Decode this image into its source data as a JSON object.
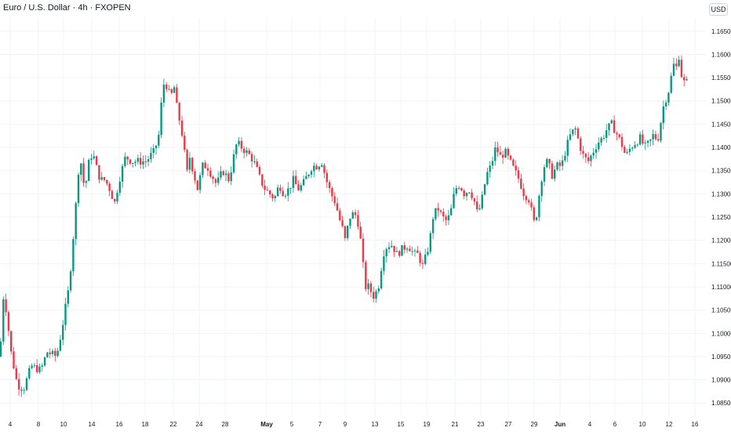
{
  "header": {
    "title": "Euro / U.S. Dollar · 4h · FXOPEN",
    "currency": "USD"
  },
  "colors": {
    "up": "#089981",
    "down": "#f23645",
    "grid": "#f0f3fa",
    "axis_text": "#131722",
    "background": "#ffffff"
  },
  "chart_data": {
    "type": "candlestick",
    "timeframe": "4h",
    "symbol": "Euro / U.S. Dollar",
    "source": "FXOPEN",
    "ylim": [
      1.082,
      1.168
    ],
    "grid": true,
    "y_ticks": [
      "1.16500",
      "1.16000",
      "1.15500",
      "1.15000",
      "1.14500",
      "1.14000",
      "1.13500",
      "1.13000",
      "1.12500",
      "1.12000",
      "1.11500",
      "1.11000",
      "1.10500",
      "1.10000",
      "1.09500",
      "1.09000",
      "1.08500"
    ],
    "x_ticks": [
      "4",
      "8",
      "10",
      "14",
      "16",
      "18",
      "22",
      "24",
      "28",
      "May",
      "5",
      "7",
      "9",
      "13",
      "15",
      "19",
      "21",
      "23",
      "27",
      "29",
      "Jun",
      "4",
      "6",
      "10",
      "12",
      "16"
    ],
    "bold_ticks": [
      "May",
      "Jun"
    ],
    "anchors": [
      [
        0,
        1.095
      ],
      [
        4,
        1.108
      ],
      [
        8,
        1.105
      ],
      [
        14,
        1.096
      ],
      [
        22,
        1.089
      ],
      [
        30,
        1.088
      ],
      [
        40,
        1.093
      ],
      [
        52,
        1.092
      ],
      [
        60,
        1.096
      ],
      [
        72,
        1.095
      ],
      [
        78,
        1.1
      ],
      [
        84,
        1.106
      ],
      [
        88,
        1.11
      ],
      [
        92,
        1.118
      ],
      [
        96,
        1.126
      ],
      [
        100,
        1.135
      ],
      [
        104,
        1.137
      ],
      [
        108,
        1.13
      ],
      [
        112,
        1.136
      ],
      [
        118,
        1.139
      ],
      [
        124,
        1.135
      ],
      [
        128,
        1.133
      ],
      [
        134,
        1.133
      ],
      [
        140,
        1.131
      ],
      [
        146,
        1.128
      ],
      [
        152,
        1.133
      ],
      [
        160,
        1.138
      ],
      [
        168,
        1.137
      ],
      [
        178,
        1.137
      ],
      [
        186,
        1.137
      ],
      [
        196,
        1.139
      ],
      [
        202,
        1.142
      ],
      [
        206,
        1.15
      ],
      [
        210,
        1.155
      ],
      [
        214,
        1.152
      ],
      [
        218,
        1.151
      ],
      [
        222,
        1.153
      ],
      [
        226,
        1.148
      ],
      [
        230,
        1.145
      ],
      [
        234,
        1.141
      ],
      [
        238,
        1.134
      ],
      [
        242,
        1.138
      ],
      [
        246,
        1.135
      ],
      [
        252,
        1.131
      ],
      [
        258,
        1.136
      ],
      [
        264,
        1.136
      ],
      [
        270,
        1.134
      ],
      [
        276,
        1.132
      ],
      [
        284,
        1.135
      ],
      [
        292,
        1.133
      ],
      [
        298,
        1.138
      ],
      [
        302,
        1.141
      ],
      [
        308,
        1.14
      ],
      [
        314,
        1.139
      ],
      [
        320,
        1.138
      ],
      [
        326,
        1.136
      ],
      [
        332,
        1.133
      ],
      [
        338,
        1.131
      ],
      [
        344,
        1.13
      ],
      [
        350,
        1.129
      ],
      [
        356,
        1.132
      ],
      [
        362,
        1.13
      ],
      [
        368,
        1.131
      ],
      [
        374,
        1.133
      ],
      [
        380,
        1.131
      ],
      [
        386,
        1.132
      ],
      [
        392,
        1.134
      ],
      [
        398,
        1.136
      ],
      [
        404,
        1.136
      ],
      [
        410,
        1.137
      ],
      [
        416,
        1.133
      ],
      [
        422,
        1.13
      ],
      [
        428,
        1.128
      ],
      [
        432,
        1.125
      ],
      [
        436,
        1.123
      ],
      [
        440,
        1.12
      ],
      [
        446,
        1.125
      ],
      [
        452,
        1.126
      ],
      [
        458,
        1.123
      ],
      [
        462,
        1.116
      ],
      [
        466,
        1.11
      ],
      [
        470,
        1.11
      ],
      [
        476,
        1.108
      ],
      [
        480,
        1.109
      ],
      [
        484,
        1.111
      ],
      [
        488,
        1.117
      ],
      [
        494,
        1.119
      ],
      [
        500,
        1.119
      ],
      [
        506,
        1.117
      ],
      [
        512,
        1.118
      ],
      [
        520,
        1.119
      ],
      [
        528,
        1.117
      ],
      [
        534,
        1.117
      ],
      [
        538,
        1.114
      ],
      [
        544,
        1.117
      ],
      [
        548,
        1.12
      ],
      [
        552,
        1.125
      ],
      [
        558,
        1.127
      ],
      [
        564,
        1.125
      ],
      [
        570,
        1.124
      ],
      [
        576,
        1.127
      ],
      [
        580,
        1.131
      ],
      [
        586,
        1.132
      ],
      [
        592,
        1.13
      ],
      [
        598,
        1.131
      ],
      [
        604,
        1.129
      ],
      [
        608,
        1.126
      ],
      [
        612,
        1.127
      ],
      [
        616,
        1.13
      ],
      [
        620,
        1.134
      ],
      [
        626,
        1.136
      ],
      [
        632,
        1.14
      ],
      [
        638,
        1.138
      ],
      [
        644,
        1.139
      ],
      [
        650,
        1.137
      ],
      [
        656,
        1.135
      ],
      [
        662,
        1.133
      ],
      [
        668,
        1.13
      ],
      [
        674,
        1.129
      ],
      [
        678,
        1.126
      ],
      [
        682,
        1.123
      ],
      [
        686,
        1.128
      ],
      [
        690,
        1.133
      ],
      [
        694,
        1.136
      ],
      [
        698,
        1.137
      ],
      [
        704,
        1.134
      ],
      [
        710,
        1.136
      ],
      [
        716,
        1.136
      ],
      [
        722,
        1.14
      ],
      [
        728,
        1.143
      ],
      [
        734,
        1.144
      ],
      [
        738,
        1.141
      ],
      [
        744,
        1.138
      ],
      [
        750,
        1.137
      ],
      [
        756,
        1.139
      ],
      [
        762,
        1.141
      ],
      [
        768,
        1.142
      ],
      [
        774,
        1.144
      ],
      [
        780,
        1.145
      ],
      [
        786,
        1.143
      ],
      [
        792,
        1.141
      ],
      [
        798,
        1.138
      ],
      [
        804,
        1.14
      ],
      [
        810,
        1.141
      ],
      [
        816,
        1.142
      ],
      [
        822,
        1.14
      ],
      [
        828,
        1.141
      ],
      [
        834,
        1.143
      ],
      [
        838,
        1.141
      ],
      [
        842,
        1.145
      ],
      [
        846,
        1.149
      ],
      [
        850,
        1.151
      ],
      [
        854,
        1.153
      ],
      [
        858,
        1.158
      ],
      [
        862,
        1.157
      ],
      [
        866,
        1.16
      ],
      [
        868,
        1.156
      ],
      [
        872,
        1.154
      ],
      [
        876,
        1.154
      ]
    ]
  }
}
